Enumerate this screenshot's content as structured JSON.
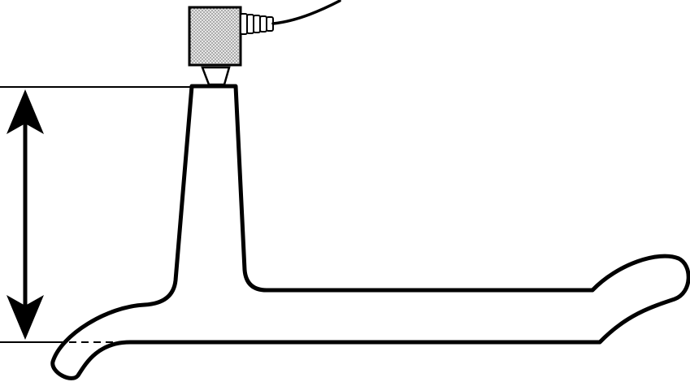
{
  "diagram": {
    "colors": {
      "stroke": "#000000",
      "background": "#ffffff",
      "sensor_fill": "#e6e6e6",
      "sensor_stipple": "#555555"
    },
    "elements": [
      "height-dimension-arrow",
      "upper-reference-line",
      "lower-reference-line",
      "specimen-outline",
      "sensor-block",
      "sensor-connector",
      "sensor-cable"
    ]
  }
}
